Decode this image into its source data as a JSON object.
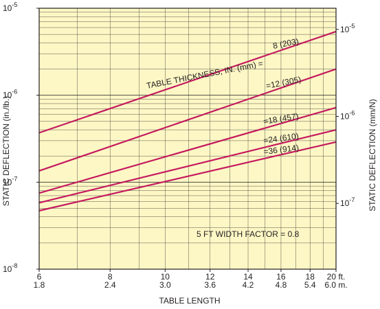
{
  "chart_data": {
    "type": "line",
    "scale": "log-log",
    "xlabel": "TABLE LENGTH",
    "ylabel_left": "STATIC DEFLECTION (in./lb.)",
    "ylabel_right": "STATIC DEFLECTION (mm/N)",
    "xlim": [
      6,
      20
    ],
    "ylim": [
      1e-08,
      1e-05
    ],
    "x_ticks": [
      6,
      8,
      10,
      12,
      14,
      16,
      18,
      20
    ],
    "x_tick_labels_ft": [
      "6",
      "8",
      "10",
      "12",
      "14",
      "16",
      "18",
      "20 ft."
    ],
    "x_tick_labels_m": [
      "1.8",
      "2.4",
      "3.0",
      "3.6",
      "4.2",
      "4.8",
      "5.4",
      "6.0 m."
    ],
    "y_left_ticks": [
      {
        "value": 1e-08,
        "base": "10",
        "exp": "-8"
      },
      {
        "value": 1e-07,
        "base": "10",
        "exp": "-7"
      },
      {
        "value": 1e-06,
        "base": "10",
        "exp": "-6"
      },
      {
        "value": 1e-05,
        "base": "10",
        "exp": "-5"
      }
    ],
    "y_right_ticks": [
      {
        "value": 5.71e-08,
        "base": "10",
        "exp": "-7"
      },
      {
        "value": 5.71e-07,
        "base": "10",
        "exp": "-6"
      },
      {
        "value": 5.71e-06,
        "base": "10",
        "exp": "-5"
      }
    ],
    "annotation_title": "TABLE THICKNESS, IN. (mm) =",
    "annotation_note": "5 FT WIDTH FACTOR = 0.8",
    "series": [
      {
        "name": "8 (203)",
        "x": [
          6,
          20
        ],
        "y": [
          3.7e-07,
          5.4e-06
        ]
      },
      {
        "name": "12 (305)",
        "x": [
          6,
          20
        ],
        "y": [
          1.35e-07,
          2e-06
        ]
      },
      {
        "name": "18 (457)",
        "x": [
          6,
          20
        ],
        "y": [
          7.5e-08,
          7.2e-07
        ]
      },
      {
        "name": "24 (610)",
        "x": [
          6,
          20
        ],
        "y": [
          5.8e-08,
          4e-07
        ]
      },
      {
        "name": "36 (914)",
        "x": [
          6,
          20
        ],
        "y": [
          4.7e-08,
          2.9e-07
        ]
      }
    ],
    "series_color": "#c41a5f",
    "grid": true,
    "background_color": "#fdf7c5"
  }
}
